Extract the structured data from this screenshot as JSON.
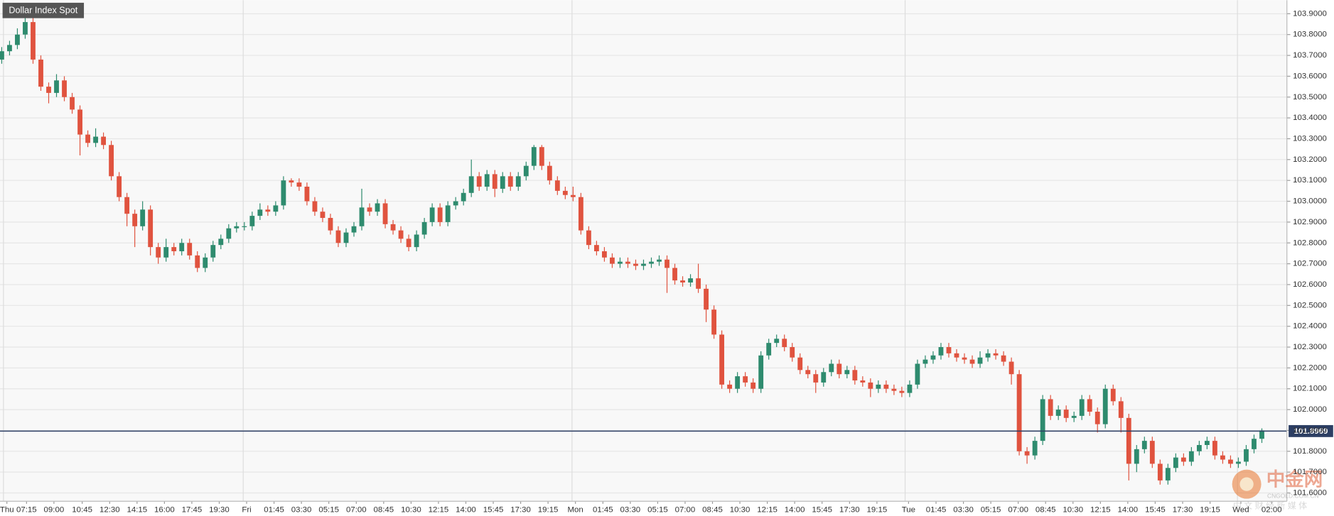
{
  "chart_data": {
    "type": "candlestick",
    "title": "Dollar Index Spot",
    "up_color": "#2e8b6e",
    "down_color": "#e0533f",
    "current_price": 101.8969,
    "current_price_color": "#2c3e63",
    "grid": true,
    "watermark": {
      "name": "中金网",
      "url": "CNGOLD.COM.CN",
      "slogan": "中 文 财 经 新 媒 体"
    },
    "open": [
      103.68,
      103.72,
      103.75,
      103.8,
      103.86,
      103.68,
      103.55,
      103.52,
      103.58,
      103.5,
      103.44,
      103.32,
      103.28,
      103.31,
      103.27,
      103.12,
      103.02,
      102.94,
      102.88,
      102.96,
      102.78,
      102.73,
      102.78,
      102.76,
      102.8,
      102.74,
      102.68,
      102.73,
      102.79,
      102.82,
      102.87,
      102.88,
      102.88,
      102.93,
      102.96,
      102.95,
      102.98,
      103.1,
      103.09,
      103.07,
      103.0,
      102.95,
      102.92,
      102.86,
      102.8,
      102.85,
      102.88,
      102.97,
      102.95,
      102.99,
      102.89,
      102.86,
      102.82,
      102.78,
      102.84,
      102.9,
      102.97,
      102.9,
      102.98,
      103.0,
      103.04,
      103.12,
      103.07,
      103.13,
      103.06,
      103.12,
      103.07,
      103.12,
      103.17,
      103.26,
      103.17,
      103.1,
      103.05,
      103.03,
      103.02,
      102.86,
      102.79,
      102.76,
      102.73,
      102.7,
      102.71,
      102.7,
      102.69,
      102.7,
      102.71,
      102.72,
      102.68,
      102.62,
      102.61,
      102.63,
      102.58,
      102.48,
      102.36,
      102.12,
      102.1,
      102.16,
      102.13,
      102.1,
      102.26,
      102.32,
      102.34,
      102.3,
      102.25,
      102.19,
      102.17,
      102.13,
      102.18,
      102.22,
      102.17,
      102.19,
      102.14,
      102.13,
      102.1,
      102.12,
      102.1,
      102.09,
      102.08,
      102.12,
      102.22,
      102.24,
      102.26,
      102.3,
      102.27,
      102.25,
      102.24,
      102.22,
      102.25,
      102.27,
      102.26,
      102.23,
      102.17,
      101.8,
      101.78,
      101.85,
      102.05,
      101.97,
      102.0,
      101.96,
      101.97,
      102.05,
      101.99,
      101.93,
      102.1,
      102.04,
      101.96,
      101.74,
      101.81,
      101.85,
      101.74,
      101.66,
      101.72,
      101.77,
      101.75,
      101.8,
      101.83,
      101.85,
      101.78,
      101.76,
      101.74,
      101.75,
      101.81,
      101.86
    ],
    "high": [
      103.74,
      103.77,
      103.83,
      103.89,
      103.88,
      103.7,
      103.57,
      103.61,
      103.6,
      103.52,
      103.46,
      103.34,
      103.35,
      103.33,
      103.29,
      103.14,
      103.04,
      102.96,
      103.0,
      102.98,
      102.8,
      102.82,
      102.8,
      102.82,
      102.82,
      102.76,
      102.75,
      102.81,
      102.84,
      102.89,
      102.9,
      102.9,
      102.95,
      102.99,
      102.98,
      103.0,
      103.12,
      103.11,
      103.11,
      103.09,
      103.02,
      102.97,
      102.94,
      102.88,
      102.87,
      102.9,
      103.06,
      102.99,
      103.01,
      103.01,
      102.91,
      102.88,
      102.84,
      102.86,
      102.92,
      102.99,
      102.99,
      103.0,
      103.02,
      103.06,
      103.2,
      103.14,
      103.15,
      103.15,
      103.14,
      103.14,
      103.14,
      103.19,
      103.27,
      103.27,
      103.19,
      103.12,
      103.07,
      103.07,
      103.04,
      102.88,
      102.81,
      102.78,
      102.75,
      102.73,
      102.73,
      102.72,
      102.72,
      102.73,
      102.74,
      102.74,
      102.7,
      102.64,
      102.65,
      102.7,
      102.6,
      102.5,
      102.38,
      102.14,
      102.18,
      102.18,
      102.15,
      102.28,
      102.34,
      102.36,
      102.36,
      102.32,
      102.27,
      102.21,
      102.19,
      102.2,
      102.24,
      102.24,
      102.21,
      102.21,
      102.16,
      102.15,
      102.14,
      102.14,
      102.12,
      102.11,
      102.14,
      102.24,
      102.26,
      102.28,
      102.32,
      102.32,
      102.29,
      102.27,
      102.26,
      102.28,
      102.29,
      102.29,
      102.28,
      102.25,
      102.19,
      101.82,
      101.87,
      102.07,
      102.07,
      102.02,
      102.02,
      101.99,
      102.07,
      102.07,
      102.01,
      102.12,
      102.12,
      102.06,
      101.98,
      101.83,
      101.87,
      101.87,
      101.76,
      101.74,
      101.79,
      101.79,
      101.82,
      101.85,
      101.87,
      101.87,
      101.8,
      101.78,
      101.77,
      101.83,
      101.88,
      101.91
    ],
    "low": [
      103.66,
      103.7,
      103.73,
      103.78,
      103.66,
      103.53,
      103.47,
      103.5,
      103.48,
      103.42,
      103.22,
      103.26,
      103.26,
      103.25,
      103.1,
      103.0,
      102.88,
      102.78,
      102.86,
      102.74,
      102.7,
      102.71,
      102.74,
      102.74,
      102.72,
      102.66,
      102.66,
      102.71,
      102.77,
      102.8,
      102.85,
      102.86,
      102.86,
      102.91,
      102.93,
      102.93,
      102.96,
      103.07,
      103.05,
      102.98,
      102.93,
      102.9,
      102.84,
      102.78,
      102.78,
      102.83,
      102.86,
      102.93,
      102.93,
      102.87,
      102.84,
      102.8,
      102.76,
      102.76,
      102.82,
      102.88,
      102.88,
      102.88,
      102.96,
      102.98,
      103.02,
      103.05,
      103.05,
      103.02,
      103.04,
      103.05,
      103.05,
      103.1,
      103.15,
      103.15,
      103.08,
      103.03,
      103.01,
      103.0,
      102.84,
      102.77,
      102.74,
      102.71,
      102.68,
      102.68,
      102.68,
      102.67,
      102.67,
      102.68,
      102.69,
      102.56,
      102.6,
      102.59,
      102.59,
      102.56,
      102.42,
      102.34,
      102.1,
      102.08,
      102.08,
      102.11,
      102.08,
      102.08,
      102.24,
      102.3,
      102.28,
      102.23,
      102.17,
      102.15,
      102.08,
      102.11,
      102.16,
      102.15,
      102.15,
      102.12,
      102.11,
      102.06,
      102.08,
      102.08,
      102.07,
      102.06,
      102.06,
      102.1,
      102.2,
      102.22,
      102.24,
      102.25,
      102.23,
      102.22,
      102.2,
      102.2,
      102.23,
      102.24,
      102.21,
      102.12,
      101.78,
      101.74,
      101.76,
      101.83,
      101.95,
      101.95,
      101.94,
      101.94,
      101.95,
      101.97,
      101.89,
      101.91,
      102.02,
      101.89,
      101.66,
      101.7,
      101.79,
      101.72,
      101.64,
      101.64,
      101.7,
      101.73,
      101.73,
      101.78,
      101.81,
      101.76,
      101.74,
      101.72,
      101.72,
      101.73,
      101.79,
      101.84
    ],
    "close": [
      103.72,
      103.75,
      103.8,
      103.86,
      103.68,
      103.55,
      103.52,
      103.58,
      103.5,
      103.44,
      103.32,
      103.28,
      103.31,
      103.27,
      103.12,
      103.02,
      102.94,
      102.88,
      102.96,
      102.78,
      102.73,
      102.78,
      102.76,
      102.8,
      102.74,
      102.68,
      102.73,
      102.79,
      102.82,
      102.87,
      102.88,
      102.88,
      102.93,
      102.96,
      102.95,
      102.98,
      103.1,
      103.09,
      103.07,
      103.0,
      102.95,
      102.92,
      102.86,
      102.8,
      102.85,
      102.88,
      102.97,
      102.95,
      102.99,
      102.89,
      102.86,
      102.82,
      102.78,
      102.84,
      102.9,
      102.97,
      102.9,
      102.98,
      103.0,
      103.04,
      103.12,
      103.07,
      103.13,
      103.06,
      103.12,
      103.07,
      103.12,
      103.17,
      103.26,
      103.17,
      103.1,
      103.05,
      103.03,
      103.02,
      102.86,
      102.79,
      102.76,
      102.73,
      102.7,
      102.71,
      102.7,
      102.69,
      102.7,
      102.71,
      102.72,
      102.68,
      102.62,
      102.61,
      102.63,
      102.58,
      102.48,
      102.36,
      102.12,
      102.1,
      102.16,
      102.13,
      102.1,
      102.26,
      102.32,
      102.34,
      102.3,
      102.25,
      102.19,
      102.17,
      102.13,
      102.18,
      102.22,
      102.17,
      102.19,
      102.14,
      102.13,
      102.1,
      102.12,
      102.1,
      102.09,
      102.08,
      102.12,
      102.22,
      102.24,
      102.26,
      102.3,
      102.27,
      102.25,
      102.24,
      102.22,
      102.25,
      102.27,
      102.26,
      102.23,
      102.17,
      101.8,
      101.78,
      101.85,
      102.05,
      101.97,
      102.0,
      101.96,
      101.97,
      102.05,
      101.99,
      101.93,
      102.1,
      102.04,
      101.96,
      101.74,
      101.81,
      101.85,
      101.74,
      101.66,
      101.72,
      101.77,
      101.75,
      101.8,
      101.83,
      101.85,
      101.78,
      101.76,
      101.74,
      101.75,
      101.81,
      101.86,
      101.9
    ],
    "xlim": [
      -0.22,
      164.2
    ],
    "xticks": [
      {
        "value": 0.66,
        "label": "Thu"
      },
      {
        "value": 3.17,
        "label": "07:15"
      },
      {
        "value": 6.67,
        "label": "09:00"
      },
      {
        "value": 10.28,
        "label": "10:45"
      },
      {
        "value": 13.79,
        "label": "12:30"
      },
      {
        "value": 17.29,
        "label": "14:15"
      },
      {
        "value": 20.79,
        "label": "16:00"
      },
      {
        "value": 24.29,
        "label": "17:45"
      },
      {
        "value": 27.79,
        "label": "19:30"
      },
      {
        "value": 31.29,
        "label": "Fri"
      },
      {
        "value": 34.79,
        "label": "01:45"
      },
      {
        "value": 38.29,
        "label": "03:30"
      },
      {
        "value": 41.79,
        "label": "05:15"
      },
      {
        "value": 45.3,
        "label": "07:00"
      },
      {
        "value": 48.8,
        "label": "08:45"
      },
      {
        "value": 52.3,
        "label": "10:30"
      },
      {
        "value": 55.8,
        "label": "12:15"
      },
      {
        "value": 59.3,
        "label": "14:00"
      },
      {
        "value": 62.8,
        "label": "15:45"
      },
      {
        "value": 66.3,
        "label": "17:30"
      },
      {
        "value": 69.8,
        "label": "19:15"
      },
      {
        "value": 73.3,
        "label": "Mon"
      },
      {
        "value": 76.81,
        "label": "01:45"
      },
      {
        "value": 80.31,
        "label": "03:30"
      },
      {
        "value": 83.81,
        "label": "05:15"
      },
      {
        "value": 87.31,
        "label": "07:00"
      },
      {
        "value": 90.81,
        "label": "08:45"
      },
      {
        "value": 94.31,
        "label": "10:30"
      },
      {
        "value": 97.81,
        "label": "12:15"
      },
      {
        "value": 101.31,
        "label": "14:00"
      },
      {
        "value": 104.81,
        "label": "15:45"
      },
      {
        "value": 108.32,
        "label": "17:30"
      },
      {
        "value": 111.82,
        "label": "19:15"
      },
      {
        "value": 115.86,
        "label": "Tue"
      },
      {
        "value": 119.37,
        "label": "01:45"
      },
      {
        "value": 122.87,
        "label": "03:30"
      },
      {
        "value": 126.37,
        "label": "05:15"
      },
      {
        "value": 129.87,
        "label": "07:00"
      },
      {
        "value": 133.37,
        "label": "08:45"
      },
      {
        "value": 136.87,
        "label": "10:30"
      },
      {
        "value": 140.37,
        "label": "12:15"
      },
      {
        "value": 143.87,
        "label": "14:00"
      },
      {
        "value": 147.37,
        "label": "15:45"
      },
      {
        "value": 150.88,
        "label": "17:30"
      },
      {
        "value": 154.38,
        "label": "19:15"
      },
      {
        "value": 158.32,
        "label": "Wed"
      },
      {
        "value": 162.25,
        "label": "02:00"
      }
    ],
    "ylim": [
      101.56,
      103.965
    ],
    "yticks": [
      {
        "value": 101.6,
        "label": "101.6000"
      },
      {
        "value": 101.7,
        "label": "101.7000"
      },
      {
        "value": 101.8,
        "label": "101.8000"
      },
      {
        "value": 101.9,
        "label": "101.9000"
      },
      {
        "value": 102.0,
        "label": "102.0000"
      },
      {
        "value": 102.1,
        "label": "102.1000"
      },
      {
        "value": 102.2,
        "label": "102.2000"
      },
      {
        "value": 102.3,
        "label": "102.3000"
      },
      {
        "value": 102.4,
        "label": "102.4000"
      },
      {
        "value": 102.5,
        "label": "102.5000"
      },
      {
        "value": 102.6,
        "label": "102.6000"
      },
      {
        "value": 102.7,
        "label": "102.7000"
      },
      {
        "value": 102.8,
        "label": "102.8000"
      },
      {
        "value": 102.9,
        "label": "102.9000"
      },
      {
        "value": 103.0,
        "label": "103.0000"
      },
      {
        "value": 103.1,
        "label": "103.1000"
      },
      {
        "value": 103.2,
        "label": "103.2000"
      },
      {
        "value": 103.3,
        "label": "103.3000"
      },
      {
        "value": 103.4,
        "label": "103.4000"
      },
      {
        "value": 103.5,
        "label": "103.5000"
      },
      {
        "value": 103.6,
        "label": "103.6000"
      },
      {
        "value": 103.7,
        "label": "103.7000"
      },
      {
        "value": 103.8,
        "label": "103.8000"
      },
      {
        "value": 103.9,
        "label": "103.9000"
      }
    ]
  }
}
